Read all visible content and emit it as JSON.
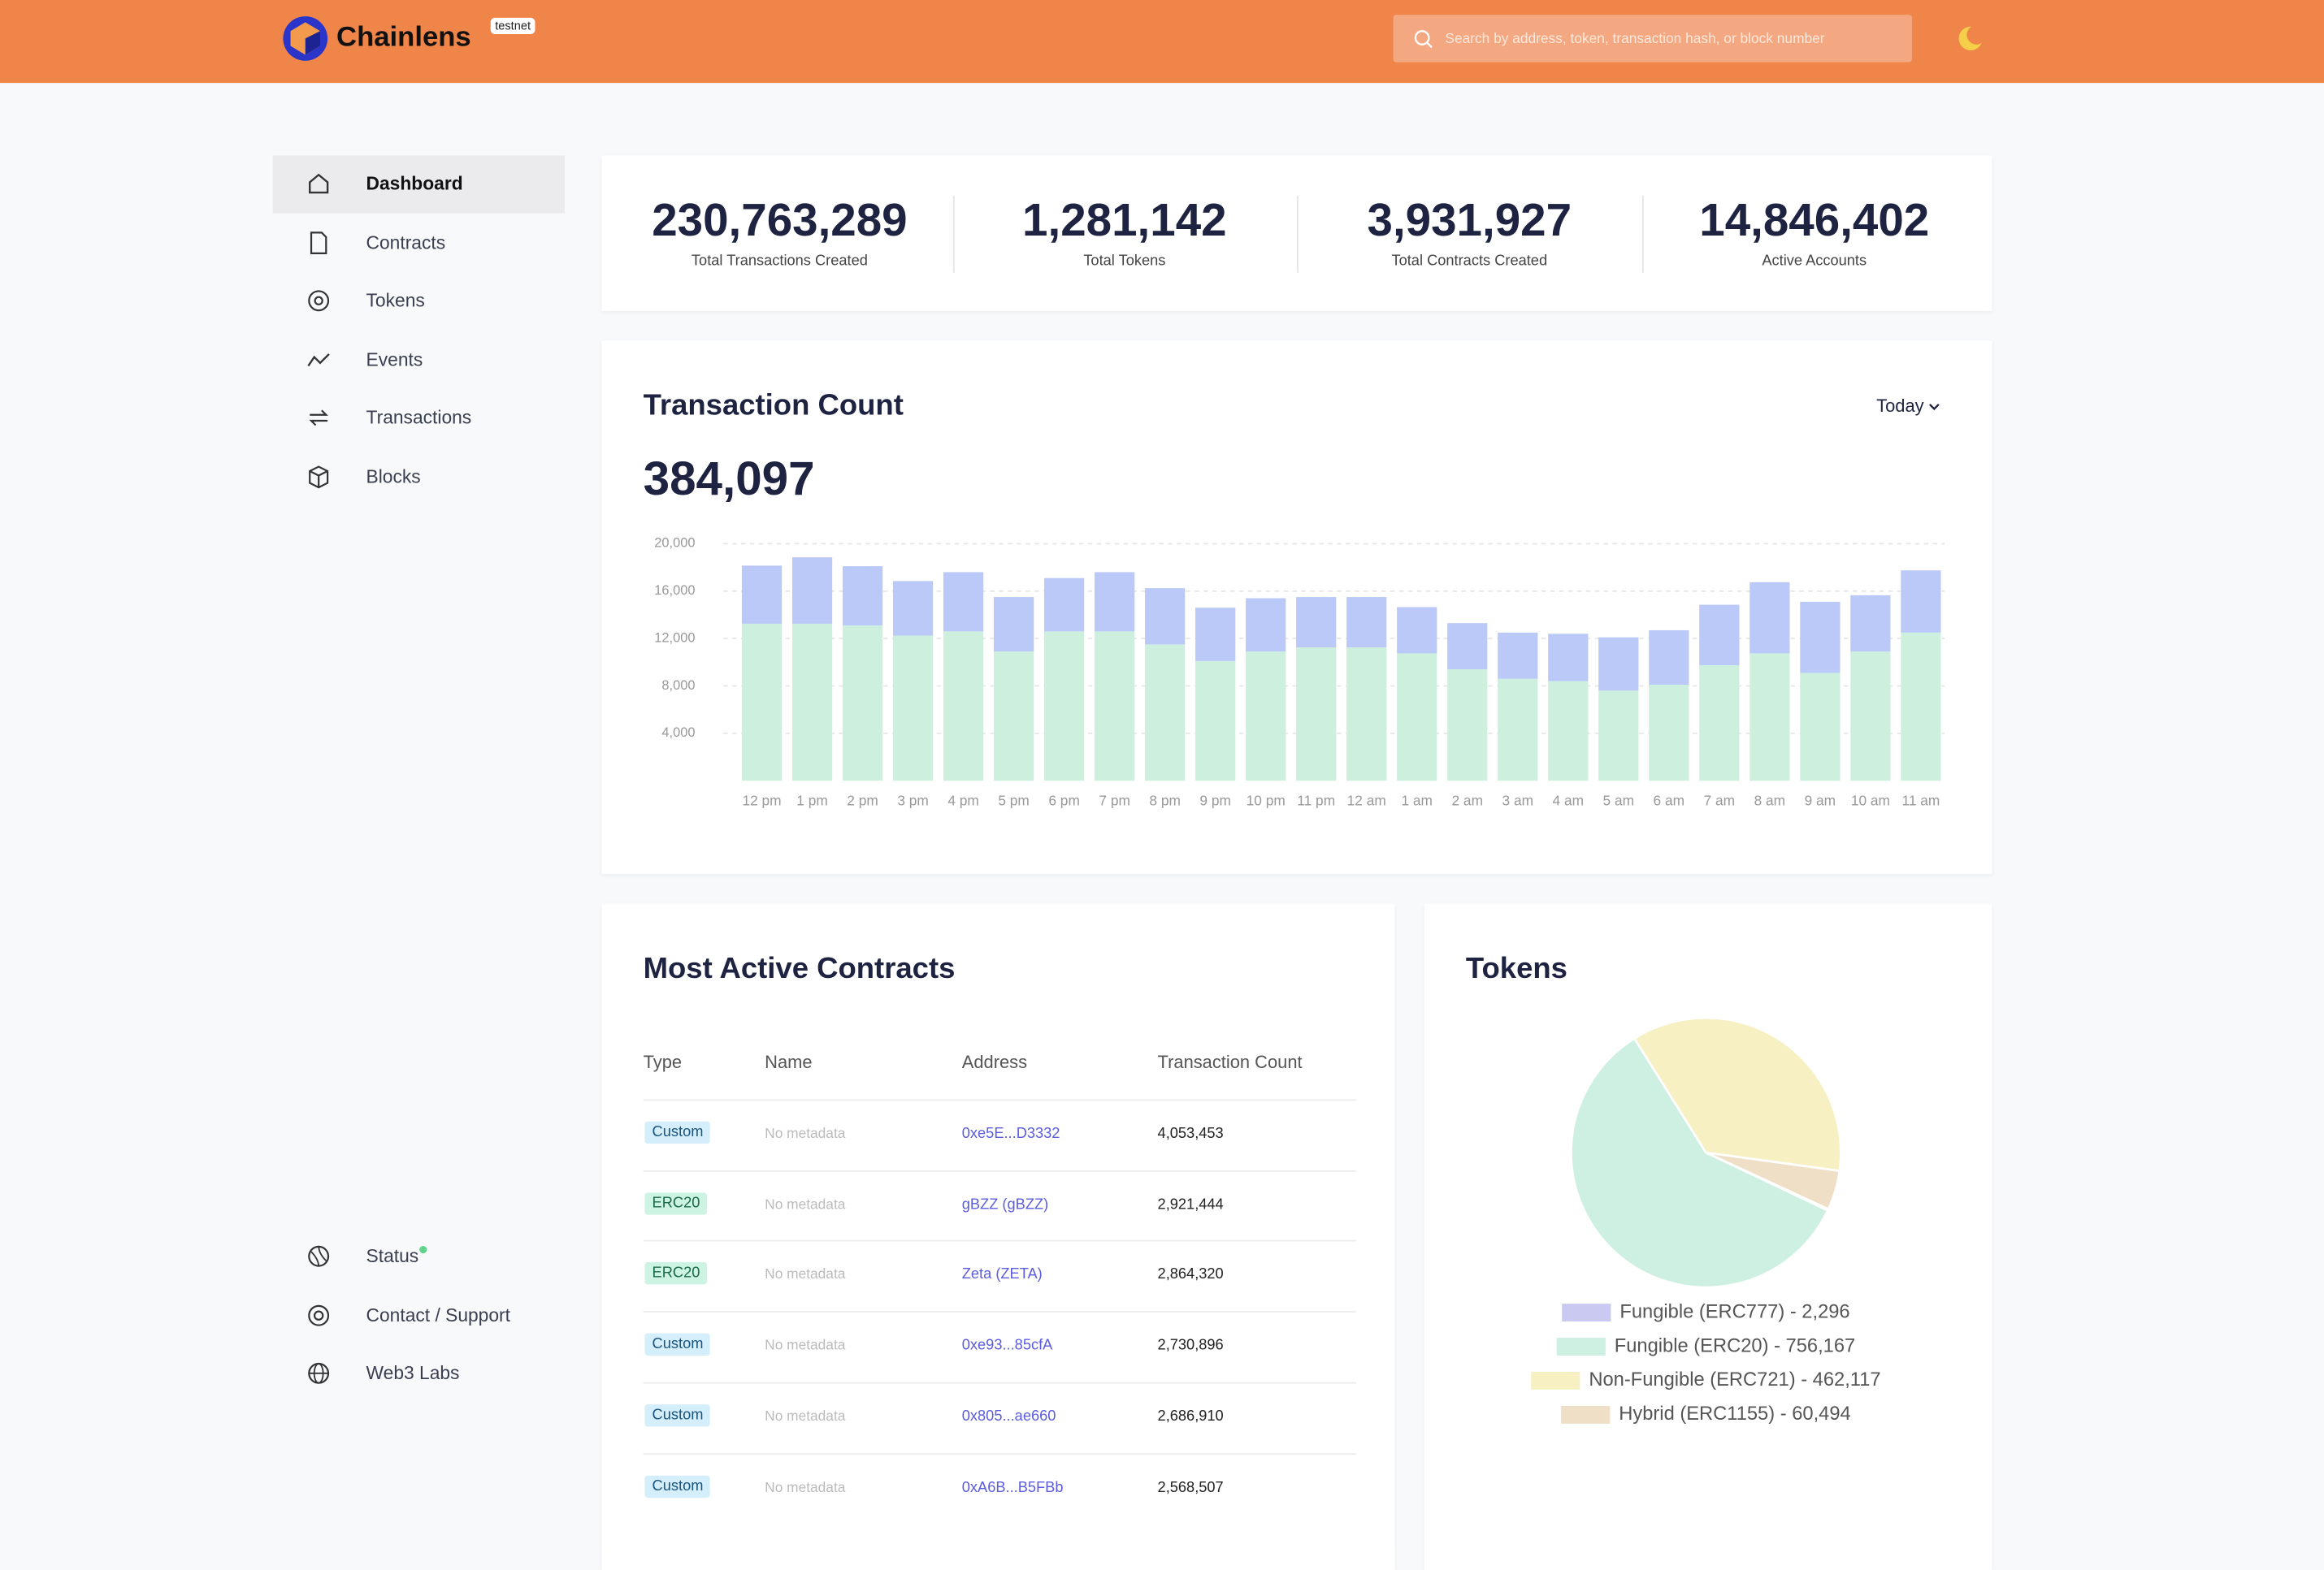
{
  "header": {
    "brand": "Chainlens",
    "badge": "testnet",
    "search_placeholder": "Search by address, token, transaction hash, or block number"
  },
  "nav": [
    {
      "label": "Dashboard"
    },
    {
      "label": "Contracts"
    },
    {
      "label": "Tokens"
    },
    {
      "label": "Events"
    },
    {
      "label": "Transactions"
    },
    {
      "label": "Blocks"
    }
  ],
  "nav_bottom": [
    {
      "label": "Status"
    },
    {
      "label": "Contact / Support"
    },
    {
      "label": "Web3 Labs"
    }
  ],
  "stats": [
    {
      "value": "230,763,289",
      "label": "Total Transactions Created"
    },
    {
      "value": "1,281,142",
      "label": "Total Tokens"
    },
    {
      "value": "3,931,927",
      "label": "Total Contracts Created"
    },
    {
      "value": "14,846,402",
      "label": "Active Accounts"
    }
  ],
  "transaction_chart": {
    "type": "bar",
    "title": "Transaction Count",
    "period": "Today",
    "total": "384,097",
    "categories": [
      "12 pm",
      "1 pm",
      "2 pm",
      "3 pm",
      "4 pm",
      "5 pm",
      "6 pm",
      "7 pm",
      "8 pm",
      "9 pm",
      "10 pm",
      "11 pm",
      "12 am",
      "1 am",
      "2 am",
      "3 am",
      "4 am",
      "5 am",
      "6 am",
      "7 am",
      "8 am",
      "9 am",
      "10 am",
      "11 am"
    ],
    "series": [
      {
        "color": "#cdf0de",
        "values": [
          13250,
          13250,
          13100,
          12250,
          12600,
          10900,
          12600,
          12600,
          11500,
          10100,
          10900,
          11250,
          11250,
          10750,
          9400,
          8600,
          8400,
          7600,
          8100,
          9750,
          10750,
          9100,
          10900,
          12500
        ]
      },
      {
        "color": "#bac9f7",
        "values": [
          4900,
          5600,
          5000,
          4600,
          5000,
          4600,
          4500,
          5000,
          4750,
          4500,
          4500,
          4250,
          4250,
          3900,
          3900,
          3900,
          4000,
          4500,
          4600,
          5100,
          6000,
          6000,
          4750,
          5250
        ]
      }
    ],
    "ylim": [
      0,
      20000
    ],
    "yticks": [
      {
        "value": 4000,
        "label": "4,000"
      },
      {
        "value": 8000,
        "label": "8,000"
      },
      {
        "value": 12000,
        "label": "12,000"
      },
      {
        "value": 16000,
        "label": "16,000"
      },
      {
        "value": 20000,
        "label": "20,000"
      }
    ],
    "grid": true
  },
  "contracts_table": {
    "title": "Most Active Contracts",
    "columns": [
      "Type",
      "Name",
      "Address",
      "Transaction Count"
    ],
    "rows": [
      [
        "Custom",
        "No metadata",
        "0xe5E...D3332",
        "4,053,453"
      ],
      [
        "ERC20",
        "No metadata",
        "gBZZ (gBZZ)",
        "2,921,444"
      ],
      [
        "ERC20",
        "No metadata",
        "Zeta (ZETA)",
        "2,864,320"
      ],
      [
        "Custom",
        "No metadata",
        "0xe93...85cfA",
        "2,730,896"
      ],
      [
        "Custom",
        "No metadata",
        "0x805...ae660",
        "2,686,910"
      ],
      [
        "Custom",
        "No metadata",
        "0xA6B...B5FBb",
        "2,568,507"
      ]
    ]
  },
  "tokens_chart": {
    "type": "pie",
    "title": "Tokens",
    "legend": [
      "Fungible (ERC777) - 2,296",
      "Fungible (ERC20) - 756,167",
      "Non-Fungible (ERC721) - 462,117",
      "Hybrid (ERC1155) - 60,494"
    ],
    "values": [
      2296,
      756167,
      462117,
      60494
    ],
    "colors": [
      "#c9c9f2",
      "#cdf0e2",
      "#f6f0c2",
      "#eedfc6"
    ]
  }
}
